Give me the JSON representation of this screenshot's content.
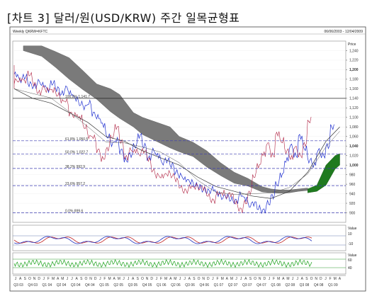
{
  "page_title": "[차트 3] 달러/원(USD/KRW) 주간 일목균형표",
  "chart_data": {
    "type": "line",
    "panel_label": "Weekly QKRW=KFTC",
    "date_range": "06/06/2003 - 12/04/2009",
    "yaxis_header": "Price",
    "ylim": [
      880,
      1260
    ],
    "y_ticks": [
      1240,
      1220,
      1200,
      1180,
      1160,
      1140,
      1120,
      1100,
      1080,
      1060,
      1040,
      1020,
      1000,
      980,
      960,
      940,
      920,
      900
    ],
    "y_tick_labels": [
      "1,240",
      "1,220",
      "1,200",
      "1,180",
      "1,160",
      "1,140",
      "1,120",
      "1,100",
      "1,080",
      "1,060",
      "1,040",
      "1,020",
      "1,000",
      "980",
      "960",
      "940",
      "920",
      "900"
    ],
    "y_tick_bold": [
      "1,200",
      "1,040",
      "1,000"
    ],
    "hline": {
      "value": 1140,
      "label": "100.0% 1,141.7"
    },
    "fib_levels": [
      {
        "value": 1051,
        "label": "61.8% 1,050.5"
      },
      {
        "value": 1023,
        "label": "50.0% 1,022.7"
      },
      {
        "value": 993,
        "label": "38.2% 992.9"
      },
      {
        "value": 957,
        "label": "23.6% 957.2"
      },
      {
        "value": 900,
        "label": "0.0% 899.6"
      }
    ],
    "x_month_labels": [
      "J",
      "A",
      "S",
      "O",
      "N",
      "D",
      "J",
      "F",
      "M",
      "A",
      "M",
      "J",
      "J",
      "A",
      "S",
      "O",
      "N",
      "D",
      "J",
      "F",
      "M",
      "A",
      "M",
      "J",
      "J",
      "A",
      "S",
      "O",
      "N",
      "D",
      "J",
      "F",
      "M",
      "A",
      "M",
      "J",
      "J",
      "A",
      "S",
      "O",
      "N",
      "D",
      "J",
      "F",
      "M",
      "A",
      "M",
      "J",
      "J",
      "A",
      "S",
      "O",
      "N",
      "D",
      "J",
      "F",
      "M",
      "A",
      "M",
      "J",
      "J",
      "A",
      "S",
      "O",
      "N",
      "D",
      "J",
      "F",
      "M",
      "A"
    ],
    "x_quarter_labels": [
      "Q3 03",
      "Q4 03",
      "Q1 04",
      "Q2 04",
      "Q3 04",
      "Q4 04",
      "Q1 05",
      "Q2 05",
      "Q3 05",
      "Q4 05",
      "Q1 06",
      "Q2 06",
      "Q3 06",
      "Q4 06",
      "Q1 07",
      "Q2 07",
      "Q3 07",
      "Q4 07",
      "Q1 08",
      "Q2 08",
      "Q3 08",
      "Q4 08",
      "Q1 09"
    ],
    "osc1": {
      "label": "Value",
      "y_tick_labels": [
        "10",
        "-10"
      ]
    },
    "osc2": {
      "label": "Value",
      "y_tick_labels": [
        "60",
        "40"
      ]
    },
    "series": [
      {
        "role": "price",
        "x": [
          0,
          1,
          2,
          3,
          4,
          5,
          6,
          7,
          8,
          9,
          10,
          11,
          12,
          13,
          14,
          15,
          16,
          17,
          18,
          19,
          20,
          21,
          22,
          23,
          24,
          25,
          26,
          27,
          28,
          29,
          30,
          31,
          32,
          33,
          34,
          35,
          36,
          37,
          38,
          39,
          40,
          41,
          42,
          43,
          44,
          45,
          46,
          47,
          48,
          49,
          50,
          51,
          52,
          53,
          54,
          55,
          56,
          57,
          58,
          59,
          60,
          61,
          62,
          63,
          64,
          65,
          66,
          67,
          68,
          69
        ],
        "y": [
          1190,
          1178,
          1185,
          1170,
          1165,
          1175,
          1168,
          1158,
          1172,
          1160,
          1150,
          1162,
          1150,
          1140,
          1128,
          1122,
          1130,
          1108,
          1100,
          1085,
          1060,
          1045,
          1052,
          1030,
          1010,
          1022,
          1040,
          1062,
          1040,
          1015,
          1030,
          1020,
          1005,
          1010,
          1000,
          985,
          978,
          970,
          965,
          958,
          955,
          948,
          946,
          950,
          940,
          932,
          935,
          928,
          925,
          938,
          930,
          915,
          920,
          910,
          905,
          920,
          935,
          960,
          980,
          1010,
          1040,
          1020,
          1060,
          1035,
          1010,
          1000,
          1030,
          1020,
          1040,
          1080
        ]
      },
      {
        "role": "ref-line",
        "x": [
          0,
          4,
          8,
          12,
          16,
          20,
          24,
          28,
          32,
          36,
          40,
          44,
          48,
          52,
          56,
          60,
          64,
          68,
          71
        ],
        "y": [
          1160,
          1140,
          1130,
          1110,
          1090,
          1060,
          1050,
          1030,
          1015,
          1000,
          975,
          955,
          945,
          935,
          930,
          945,
          985,
          1050,
          1080
        ]
      }
    ]
  }
}
